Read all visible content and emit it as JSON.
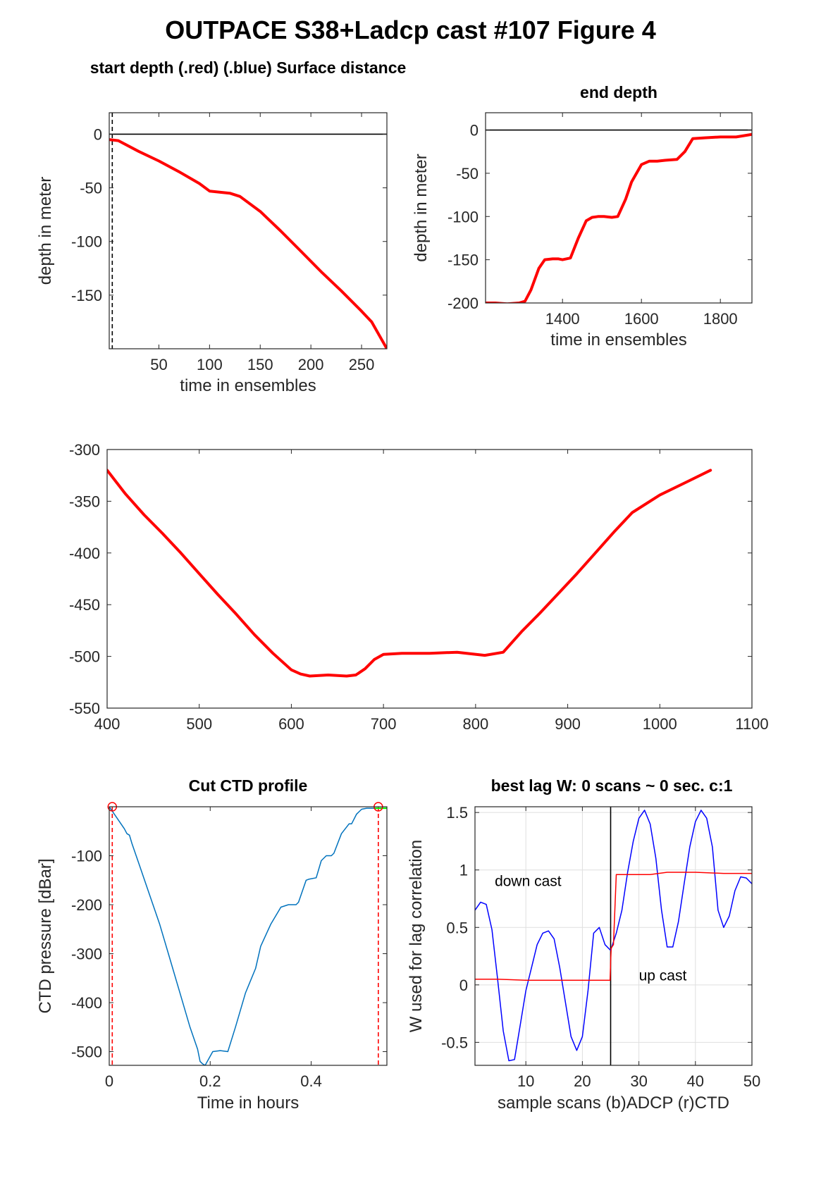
{
  "figure_title": "OUTPACE S38+Ladcp cast #107    Figure 4",
  "chart_data": [
    {
      "id": "start",
      "type": "line",
      "title": "start depth (.red) (.blue) Surface distance",
      "xlabel": "time in ensembles",
      "ylabel": "depth in meter",
      "xlim": [
        1,
        275
      ],
      "ylim": [
        -200,
        20
      ],
      "xticks": [
        50,
        100,
        150,
        200,
        250
      ],
      "yticks": [
        0,
        -50,
        -100,
        -150
      ],
      "grid": false,
      "hlines": [
        {
          "y": 0,
          "color": "#000000",
          "style": "solid"
        }
      ],
      "vlines": [
        {
          "x": 4,
          "color": "#000000",
          "style": "dashed"
        }
      ],
      "series": [
        {
          "color": "#ff0000",
          "width": 4,
          "x": [
            1,
            10,
            30,
            50,
            70,
            90,
            100,
            110,
            120,
            130,
            150,
            170,
            190,
            210,
            230,
            250,
            260,
            275
          ],
          "y": [
            -5,
            -6,
            -16,
            -25,
            -35,
            -46,
            -53,
            -54,
            -55,
            -58,
            -72,
            -90,
            -109,
            -128,
            -146,
            -165,
            -175,
            -200
          ]
        }
      ]
    },
    {
      "id": "end",
      "type": "line",
      "title": "end depth",
      "xlabel": "time in ensembles",
      "ylabel": "depth in meter",
      "xlim": [
        1205,
        1880
      ],
      "ylim": [
        -200,
        20
      ],
      "xticks": [
        1400,
        1600,
        1800
      ],
      "yticks": [
        0,
        -50,
        -100,
        -150,
        -200
      ],
      "grid": false,
      "hlines": [
        {
          "y": 0,
          "color": "#000000",
          "style": "solid"
        }
      ],
      "vlines": [],
      "series": [
        {
          "color": "#ff0000",
          "width": 4,
          "x": [
            1205,
            1230,
            1260,
            1290,
            1305,
            1320,
            1340,
            1355,
            1375,
            1390,
            1400,
            1420,
            1440,
            1460,
            1475,
            1490,
            1505,
            1525,
            1540,
            1560,
            1575,
            1600,
            1620,
            1640,
            1660,
            1690,
            1710,
            1730,
            1760,
            1800,
            1840,
            1880
          ],
          "y": [
            -200,
            -200,
            -201,
            -200,
            -198,
            -185,
            -160,
            -150,
            -149,
            -149,
            -150,
            -148,
            -125,
            -105,
            -101,
            -100,
            -100,
            -101,
            -100,
            -80,
            -60,
            -40,
            -36,
            -36,
            -35,
            -34,
            -25,
            -10,
            -9,
            -8,
            -8,
            -5
          ]
        }
      ]
    },
    {
      "id": "middle",
      "type": "line",
      "title": "",
      "xlabel": "",
      "ylabel": "",
      "xlim": [
        400,
        1100
      ],
      "ylim": [
        -550,
        -300
      ],
      "xticks": [
        400,
        500,
        600,
        700,
        800,
        900,
        1000,
        1100
      ],
      "yticks": [
        -300,
        -350,
        -400,
        -450,
        -500,
        -550
      ],
      "grid": false,
      "hlines": [],
      "vlines": [],
      "series": [
        {
          "color": "#ff0000",
          "width": 4,
          "x": [
            400,
            420,
            440,
            460,
            480,
            500,
            520,
            540,
            560,
            580,
            600,
            610,
            620,
            640,
            660,
            670,
            680,
            690,
            700,
            720,
            750,
            780,
            810,
            830,
            850,
            870,
            890,
            910,
            930,
            950,
            970,
            1000,
            1030,
            1055
          ],
          "y": [
            -320,
            -343,
            -363,
            -381,
            -400,
            -420,
            -440,
            -459,
            -479,
            -497,
            -513,
            -517,
            -519,
            -518,
            -519,
            -518,
            -512,
            -503,
            -498,
            -497,
            -497,
            -496,
            -499,
            -496,
            -476,
            -458,
            -439,
            -420,
            -400,
            -380,
            -361,
            -344,
            -331,
            -320
          ]
        }
      ]
    },
    {
      "id": "ctd",
      "type": "line",
      "title": "Cut CTD profile",
      "xlabel": "Time in hours",
      "ylabel": "CTD pressure [dBar]",
      "xlim": [
        0,
        0.55
      ],
      "ylim": [
        -528,
        0
      ],
      "xticks": [
        0,
        0.2,
        0.4
      ],
      "xticklabels": [
        "0",
        "0.2",
        "0.4"
      ],
      "yticks": [
        -100,
        -200,
        -300,
        -400,
        -500
      ],
      "grid": false,
      "hlines": [],
      "vlines": [
        {
          "x": 0.006,
          "color": "#ff0000",
          "style": "dashed"
        },
        {
          "x": 0.533,
          "color": "#ff0000",
          "style": "dashed"
        }
      ],
      "markers": [
        {
          "x": 0.006,
          "y": 0,
          "color": "#ff0000",
          "shape": "circle"
        },
        {
          "x": 0.533,
          "y": 0,
          "color": "#ff0000",
          "shape": "circle"
        }
      ],
      "series": [
        {
          "color": "#0072bd",
          "width": 1.5,
          "x": [
            0,
            0.01,
            0.03,
            0.035,
            0.04,
            0.045,
            0.06,
            0.08,
            0.1,
            0.12,
            0.14,
            0.16,
            0.175,
            0.18,
            0.185,
            0.19,
            0.205,
            0.22,
            0.235,
            0.25,
            0.27,
            0.29,
            0.3,
            0.32,
            0.34,
            0.355,
            0.37,
            0.375,
            0.39,
            0.395,
            0.41,
            0.42,
            0.43,
            0.44,
            0.445,
            0.46,
            0.475,
            0.48,
            0.49,
            0.5,
            0.51,
            0.53,
            0.55
          ],
          "y": [
            0,
            -15,
            -45,
            -55,
            -58,
            -75,
            -120,
            -180,
            -240,
            -310,
            -380,
            -450,
            -495,
            -520,
            -525,
            -528,
            -500,
            -498,
            -500,
            -450,
            -380,
            -330,
            -285,
            -240,
            -205,
            -200,
            -200,
            -195,
            -150,
            -148,
            -145,
            -110,
            -100,
            -100,
            -95,
            -55,
            -35,
            -35,
            -15,
            -5,
            -3,
            -3,
            -3
          ]
        },
        {
          "color": "#00ff00",
          "width": 2,
          "x": [
            0.525,
            0.55
          ],
          "y": [
            -3,
            -3
          ]
        }
      ]
    },
    {
      "id": "lag",
      "type": "line",
      "title": "best lag W: 0 scans ~ 0 sec.  c:1",
      "xlabel": "sample scans (b)ADCP (r)CTD",
      "ylabel": "W used for lag correlation",
      "xlim": [
        1,
        50
      ],
      "ylim": [
        -0.7,
        1.55
      ],
      "xticks": [
        10,
        20,
        30,
        40,
        50
      ],
      "yticks": [
        1.5,
        1,
        0.5,
        0,
        -0.5
      ],
      "yticklabels": [
        "1.5",
        "1",
        "0.5",
        "0",
        "-0.5"
      ],
      "grid": true,
      "hlines": [],
      "vlines": [
        {
          "x": 25,
          "color": "#000000",
          "style": "solid"
        }
      ],
      "annotations": [
        {
          "text": "down cast",
          "x": 4.5,
          "y": 0.86
        },
        {
          "text": "up cast",
          "x": 30,
          "y": 0.04
        }
      ],
      "series": [
        {
          "name": "ADCP",
          "color": "#0000ff",
          "width": 1.5,
          "x": [
            1,
            2,
            3,
            4,
            5,
            6,
            7,
            8,
            9,
            10,
            11,
            12,
            13,
            14,
            15,
            16,
            17,
            18,
            19,
            20,
            21,
            22,
            23,
            24,
            25,
            26,
            27,
            28,
            29,
            30,
            31,
            32,
            33,
            34,
            35,
            36,
            37,
            38,
            39,
            40,
            41,
            42,
            43,
            44,
            45,
            46,
            47,
            48,
            49,
            50
          ],
          "y": [
            0.65,
            0.72,
            0.7,
            0.48,
            0.05,
            -0.4,
            -0.66,
            -0.65,
            -0.35,
            -0.05,
            0.15,
            0.35,
            0.45,
            0.47,
            0.4,
            0.15,
            -0.15,
            -0.45,
            -0.57,
            -0.45,
            -0.05,
            0.45,
            0.5,
            0.35,
            0.3,
            0.45,
            0.65,
            0.98,
            1.25,
            1.45,
            1.52,
            1.4,
            1.1,
            0.65,
            0.33,
            0.33,
            0.55,
            0.88,
            1.2,
            1.42,
            1.52,
            1.45,
            1.2,
            0.65,
            0.5,
            0.6,
            0.82,
            0.94,
            0.93,
            0.88
          ]
        },
        {
          "name": "CTD",
          "color": "#ff0000",
          "width": 1.5,
          "x": [
            1,
            5,
            10,
            12,
            15,
            20,
            24.9,
            25,
            25.1,
            25.5,
            26,
            27,
            30,
            32,
            35,
            40,
            45,
            50
          ],
          "y": [
            0.05,
            0.05,
            0.04,
            0.04,
            0.04,
            0.04,
            0.04,
            0.2,
            0.32,
            0.35,
            0.96,
            0.96,
            0.96,
            0.96,
            0.98,
            0.98,
            0.97,
            0.97
          ]
        }
      ]
    }
  ]
}
